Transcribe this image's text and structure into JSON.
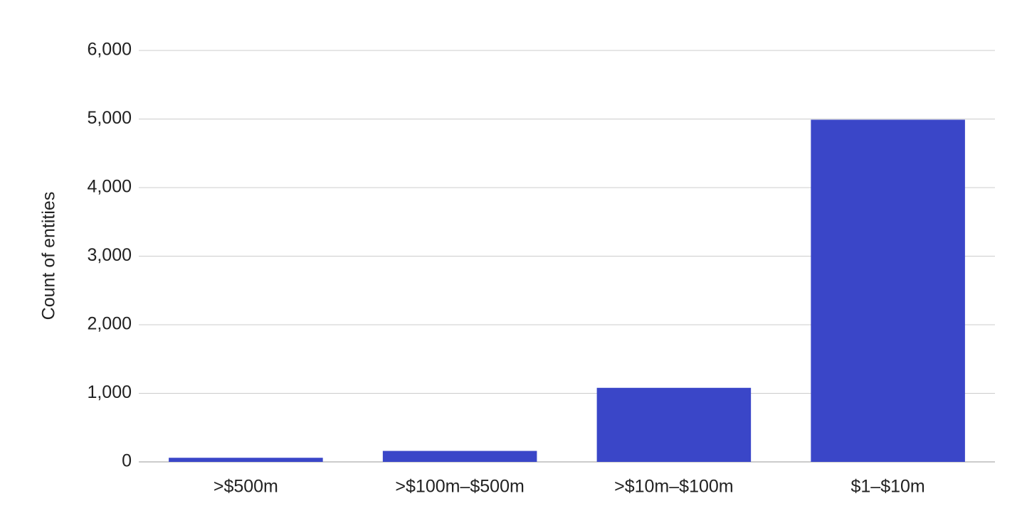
{
  "chart_data": {
    "type": "bar",
    "y_label": "Count of entities",
    "categories": [
      ">$500m",
      ">$100m–$500m",
      ">$10m–$100m",
      "$1–$10m"
    ],
    "values": [
      60,
      160,
      1080,
      4990
    ],
    "color": "#3a46c8",
    "ylim": [
      0,
      6000
    ],
    "yticks": [
      0,
      {
        "value": 1000,
        "label": "1,000"
      },
      {
        "value": 2000,
        "label": "2,000"
      },
      {
        "value": 3000,
        "label": "3,000"
      },
      {
        "value": 4000,
        "label": "4,000"
      },
      {
        "value": 5000,
        "label": "5,000"
      },
      {
        "value": 6000,
        "label": "6,000"
      }
    ],
    "grid": true
  }
}
